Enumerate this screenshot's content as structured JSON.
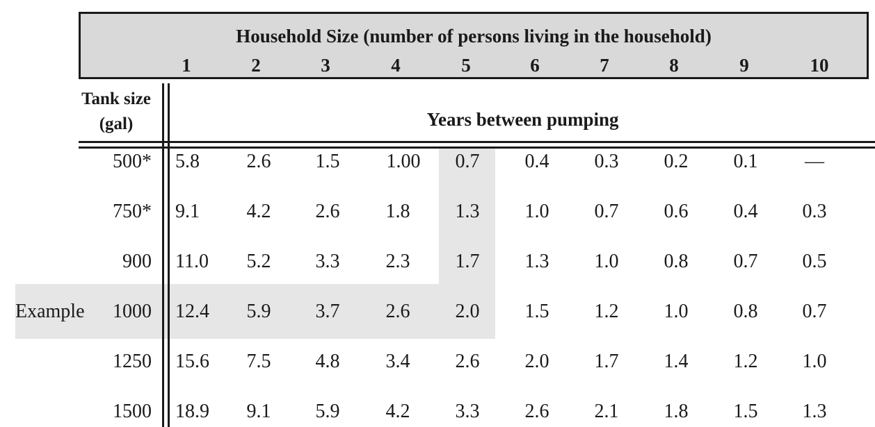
{
  "header": {
    "title": "Household Size (number of persons living in the household)",
    "columns": [
      "1",
      "2",
      "3",
      "4",
      "5",
      "6",
      "7",
      "8",
      "9",
      "10"
    ]
  },
  "row_header": {
    "line1": "Tank size",
    "line2": "(gal)"
  },
  "subheader": "Years between pumping",
  "rows": [
    {
      "tank": "500*",
      "values": [
        "5.8",
        "2.6",
        "1.5",
        "1.00",
        "0.7",
        "0.4",
        "0.3",
        "0.2",
        "0.1",
        "—"
      ]
    },
    {
      "tank": "750*",
      "values": [
        "9.1",
        "4.2",
        "2.6",
        "1.8",
        "1.3",
        "1.0",
        "0.7",
        "0.6",
        "0.4",
        "0.3"
      ]
    },
    {
      "tank": "900",
      "values": [
        "11.0",
        "5.2",
        "3.3",
        "2.3",
        "1.7",
        "1.3",
        "1.0",
        "0.8",
        "0.7",
        "0.5"
      ]
    },
    {
      "label": "Example",
      "tank": "1000",
      "values": [
        "12.4",
        "5.9",
        "3.7",
        "2.6",
        "2.0",
        "1.5",
        "1.2",
        "1.0",
        "0.8",
        "0.7"
      ]
    },
    {
      "tank": "1250",
      "values": [
        "15.6",
        "7.5",
        "4.8",
        "3.4",
        "2.6",
        "2.0",
        "1.7",
        "1.4",
        "1.2",
        "1.0"
      ]
    },
    {
      "tank": "1500",
      "values": [
        "18.9",
        "9.1",
        "5.9",
        "4.2",
        "3.3",
        "2.6",
        "2.1",
        "1.8",
        "1.5",
        "1.3"
      ]
    }
  ],
  "colors": {
    "header_bg": "#d9d9d9",
    "highlight": "#e6e6e6",
    "text": "#1a1a1a"
  }
}
